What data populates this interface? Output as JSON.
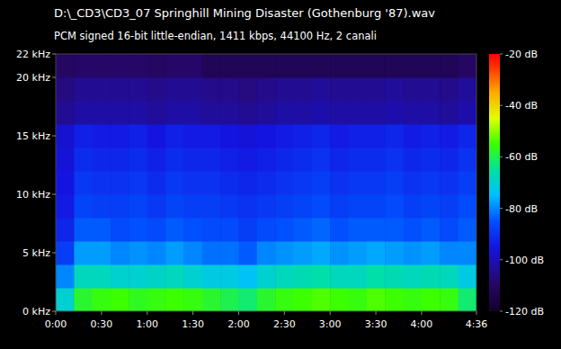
{
  "chart_data": {
    "type": "heatmap",
    "title": "D:\\_CD3\\CD3_07 Springhill Mining Disaster (Gothenburg '87).wav",
    "subtitle": "PCM signed 16-bit little-endian, 1411 kbps, 44100 Hz, 2 canali",
    "xlim": [
      0,
      276
    ],
    "xticks": [
      {
        "value": 0,
        "label": "0:00"
      },
      {
        "value": 30,
        "label": "0:30"
      },
      {
        "value": 60,
        "label": "1:00"
      },
      {
        "value": 90,
        "label": "1:30"
      },
      {
        "value": 120,
        "label": "2:00"
      },
      {
        "value": 150,
        "label": "2:30"
      },
      {
        "value": 180,
        "label": "3:00"
      },
      {
        "value": 210,
        "label": "3:30"
      },
      {
        "value": 240,
        "label": "4:00"
      },
      {
        "value": 276,
        "label": "4:36"
      }
    ],
    "ylim": [
      0,
      22
    ],
    "yticks": [
      {
        "value": 0,
        "label": "0 kHz"
      },
      {
        "value": 5,
        "label": "5 kHz"
      },
      {
        "value": 10,
        "label": "10 kHz"
      },
      {
        "value": 15,
        "label": "15 kHz"
      },
      {
        "value": 20,
        "label": "20 kHz"
      },
      {
        "value": 22,
        "label": "22 kHz"
      }
    ],
    "time_bins": [
      0,
      12,
      24,
      36,
      48,
      60,
      72,
      84,
      96,
      108,
      120,
      132,
      144,
      156,
      168,
      180,
      192,
      204,
      216,
      228,
      240,
      252,
      264,
      276
    ],
    "freq_bins": [
      0,
      2,
      4,
      6,
      8,
      10,
      12,
      14,
      16,
      18,
      20,
      22
    ],
    "cells": [
      [
        -70,
        -58,
        -56,
        -55,
        -57,
        -56,
        -55,
        -56,
        -58,
        -60,
        -62,
        -58,
        -56,
        -55,
        -54,
        -55,
        -56,
        -54,
        -55,
        -56,
        -55,
        -56,
        -62
      ],
      [
        -80,
        -68,
        -68,
        -70,
        -70,
        -69,
        -68,
        -70,
        -72,
        -72,
        -74,
        -70,
        -68,
        -67,
        -66,
        -68,
        -68,
        -66,
        -67,
        -68,
        -67,
        -68,
        -72
      ],
      [
        -88,
        -78,
        -78,
        -80,
        -79,
        -80,
        -78,
        -80,
        -82,
        -82,
        -84,
        -80,
        -79,
        -78,
        -77,
        -79,
        -78,
        -77,
        -78,
        -79,
        -78,
        -80,
        -80
      ],
      [
        -92,
        -84,
        -84,
        -86,
        -85,
        -86,
        -84,
        -85,
        -86,
        -86,
        -88,
        -86,
        -85,
        -84,
        -83,
        -85,
        -84,
        -84,
        -84,
        -85,
        -84,
        -86,
        -84
      ],
      [
        -94,
        -87,
        -88,
        -88,
        -87,
        -89,
        -87,
        -88,
        -88,
        -89,
        -90,
        -89,
        -88,
        -87,
        -86,
        -88,
        -87,
        -87,
        -86,
        -88,
        -87,
        -88,
        -86
      ],
      [
        -95,
        -89,
        -90,
        -90,
        -89,
        -91,
        -89,
        -90,
        -90,
        -91,
        -92,
        -91,
        -90,
        -89,
        -88,
        -90,
        -89,
        -89,
        -88,
        -90,
        -89,
        -90,
        -88
      ],
      [
        -96,
        -91,
        -92,
        -92,
        -91,
        -93,
        -91,
        -92,
        -92,
        -93,
        -94,
        -93,
        -92,
        -91,
        -90,
        -92,
        -91,
        -91,
        -90,
        -92,
        -91,
        -92,
        -90
      ],
      [
        -97,
        -93,
        -94,
        -94,
        -93,
        -95,
        -93,
        -94,
        -94,
        -95,
        -96,
        -95,
        -94,
        -93,
        -92,
        -94,
        -93,
        -93,
        -92,
        -94,
        -93,
        -94,
        -92
      ],
      [
        -104,
        -102,
        -102,
        -102,
        -102,
        -103,
        -102,
        -102,
        -103,
        -103,
        -104,
        -103,
        -102,
        -102,
        -101,
        -102,
        -102,
        -102,
        -101,
        -102,
        -102,
        -103,
        -101
      ],
      [
        -106,
        -104,
        -104,
        -104,
        -104,
        -105,
        -104,
        -104,
        -105,
        -105,
        -106,
        -105,
        -104,
        -104,
        -103,
        -104,
        -104,
        -104,
        -103,
        -104,
        -104,
        -105,
        -103
      ],
      [
        -110,
        -109,
        -109,
        -109,
        -109,
        -110,
        -109,
        -109,
        -112,
        -112,
        -112,
        -112,
        -112,
        -112,
        -112,
        -112,
        -112,
        -112,
        -112,
        -112,
        -112,
        -112,
        -110
      ]
    ],
    "colorbar": {
      "range": [
        -120,
        -20
      ],
      "ticks": [
        {
          "value": -20,
          "label": "-20 dB"
        },
        {
          "value": -40,
          "label": "-40 dB"
        },
        {
          "value": -60,
          "label": "-60 dB"
        },
        {
          "value": -80,
          "label": "-80 dB"
        },
        {
          "value": -100,
          "label": "-100 dB"
        },
        {
          "value": -120,
          "label": "-120 dB"
        }
      ]
    }
  }
}
